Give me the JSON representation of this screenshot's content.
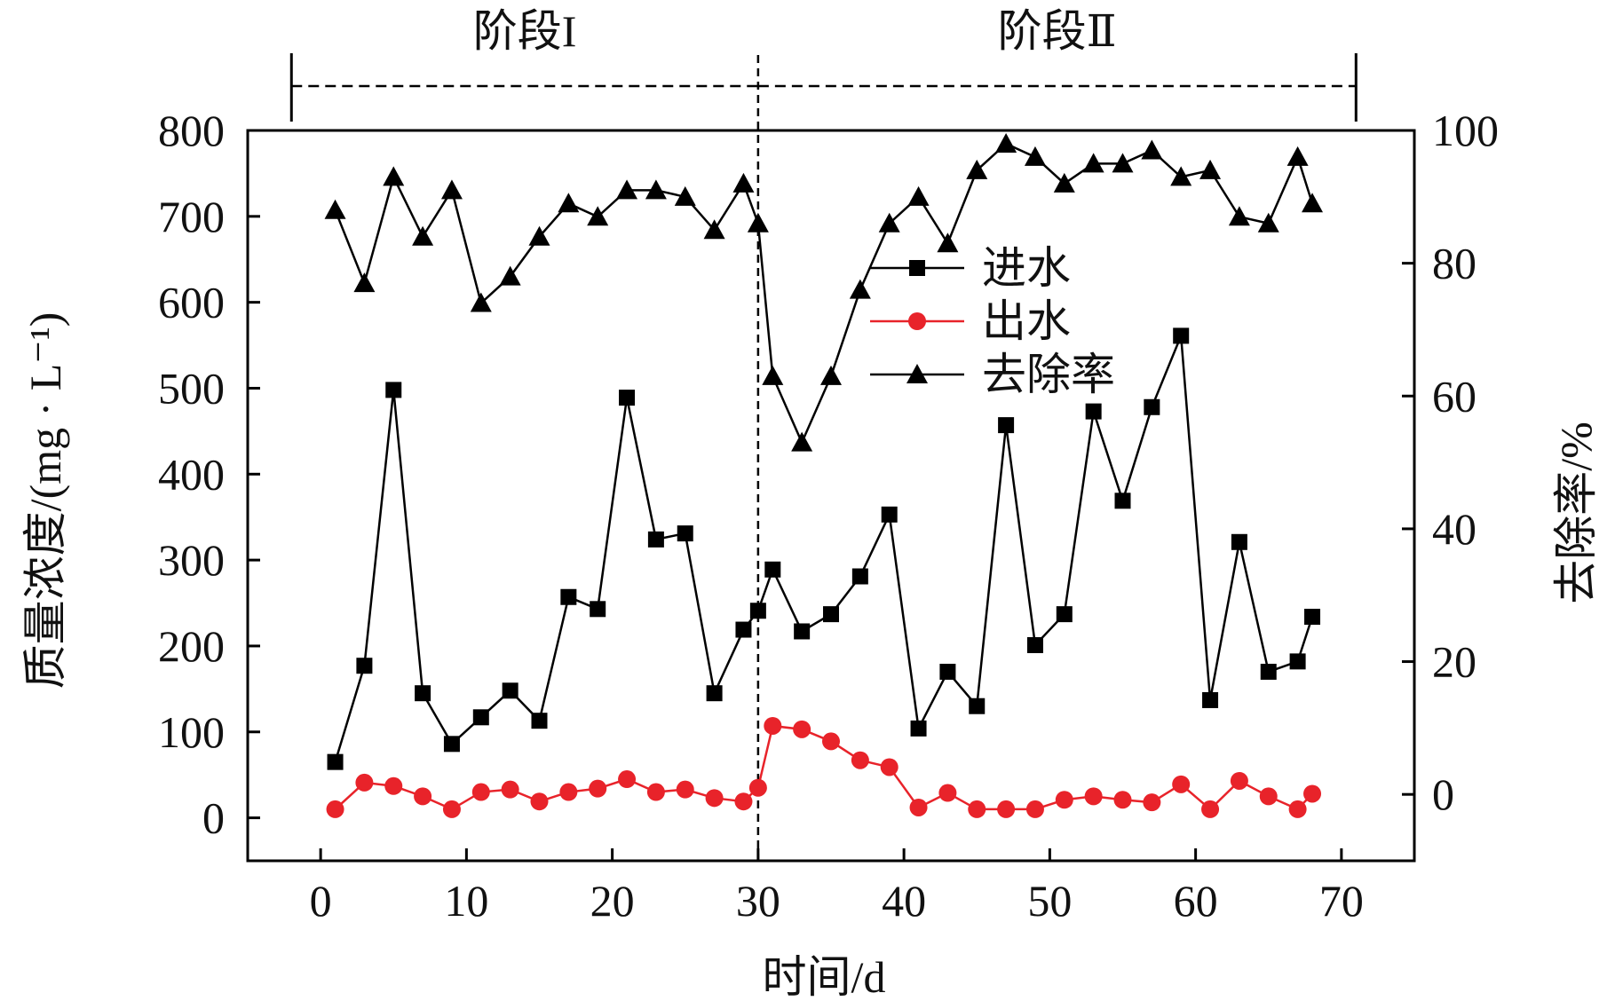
{
  "chart_data": {
    "type": "line",
    "xlabel": "时间/d",
    "ylabel_left": "质量浓度/(mg · L⁻¹)",
    "ylabel_right": "去除率/%",
    "xlim": [
      -5,
      75
    ],
    "ylim_left": [
      -50,
      800
    ],
    "ylim_right": [
      -10,
      100
    ],
    "x_ticks": [
      0,
      10,
      20,
      30,
      40,
      50,
      60,
      70
    ],
    "y_ticks_left": [
      0,
      100,
      200,
      300,
      400,
      500,
      600,
      700,
      800
    ],
    "y_ticks_right": [
      0,
      20,
      40,
      60,
      80,
      100
    ],
    "stages": [
      {
        "label": "阶段I",
        "x_start": -2,
        "x_end": 30
      },
      {
        "label": "阶段Ⅱ",
        "x_start": 30,
        "x_end": 71
      }
    ],
    "stage_divider_x": 30,
    "legend_position": "center-right",
    "series": [
      {
        "name": "进水",
        "axis": "left",
        "marker": "square",
        "color": "#000000",
        "x": [
          1,
          3,
          5,
          7,
          9,
          11,
          13,
          15,
          17,
          19,
          21,
          23,
          25,
          27,
          29,
          30,
          31,
          33,
          35,
          37,
          39,
          41,
          43,
          45,
          47,
          49,
          51,
          53,
          55,
          57,
          59,
          61,
          63,
          65,
          67,
          68
        ],
        "values": [
          65,
          177,
          498,
          145,
          86,
          117,
          148,
          113,
          257,
          243,
          489,
          324,
          331,
          145,
          219,
          241,
          289,
          217,
          237,
          281,
          353,
          104,
          170,
          130,
          457,
          201,
          237,
          473,
          369,
          478,
          561,
          137,
          321,
          170,
          182,
          234
        ]
      },
      {
        "name": "出水",
        "axis": "left",
        "marker": "circle",
        "color": "#e8232a",
        "x": [
          1,
          3,
          5,
          7,
          9,
          11,
          13,
          15,
          17,
          19,
          21,
          23,
          25,
          27,
          29,
          30,
          31,
          33,
          35,
          37,
          39,
          41,
          43,
          45,
          47,
          49,
          51,
          53,
          55,
          57,
          59,
          61,
          63,
          65,
          67,
          68
        ],
        "values": [
          10,
          41,
          37,
          25,
          10,
          30,
          33,
          19,
          30,
          34,
          45,
          30,
          33,
          23,
          19,
          35,
          107,
          103,
          89,
          67,
          59,
          12,
          29,
          10,
          10,
          10,
          21,
          25,
          21,
          18,
          39,
          10,
          43,
          25,
          10,
          28
        ]
      },
      {
        "name": "去除率",
        "axis": "right",
        "marker": "triangle",
        "color": "#000000",
        "x": [
          1,
          3,
          5,
          7,
          9,
          11,
          13,
          15,
          17,
          19,
          21,
          23,
          25,
          27,
          29,
          30,
          31,
          33,
          35,
          37,
          39,
          41,
          43,
          45,
          47,
          49,
          51,
          53,
          55,
          57,
          59,
          61,
          63,
          65,
          67,
          68
        ],
        "values": [
          88,
          77,
          93,
          84,
          91,
          74,
          78,
          84,
          89,
          87,
          91,
          91,
          90,
          85,
          92,
          86,
          63,
          53,
          63,
          76,
          86,
          90,
          83,
          94,
          98,
          96,
          92,
          95,
          95,
          97,
          93,
          94,
          87,
          86,
          96,
          89
        ]
      }
    ]
  }
}
